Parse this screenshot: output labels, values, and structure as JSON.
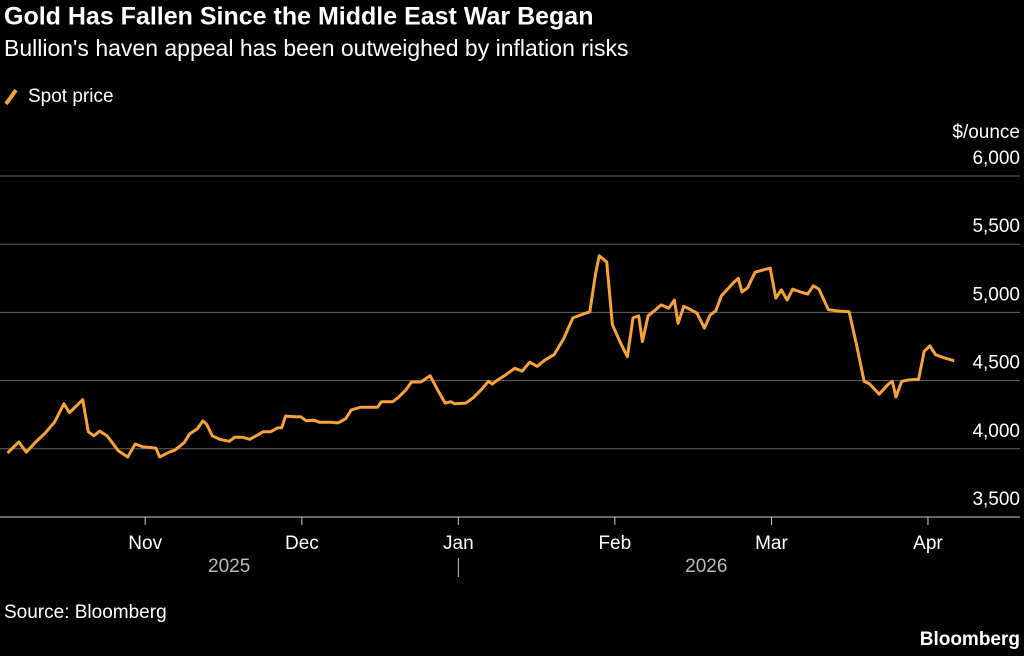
{
  "chart_data": {
    "type": "line",
    "title": "Gold Has Fallen Since the Middle East War Began",
    "subtitle": "Bullion's haven appeal has been outweighed by inflation risks",
    "y_unit": "$/ounce",
    "source": "Source: Bloomberg",
    "brand": "Bloomberg",
    "year_labels": [
      "2025",
      "2026"
    ],
    "xlim": [
      2025.756,
      2026.299
    ],
    "xticks": [
      {
        "value": 2025.8333,
        "label": "Nov"
      },
      {
        "value": 2025.9167,
        "label": "Dec"
      },
      {
        "value": 2026,
        "label": "Jan"
      },
      {
        "value": 2026.0833,
        "label": "Feb"
      },
      {
        "value": 2026.1667,
        "label": "Mar"
      },
      {
        "value": 2026.25,
        "label": "Apr"
      }
    ],
    "ylim": [
      3500,
      6000
    ],
    "yticks": [
      {
        "value": 3500,
        "label": "3,500"
      },
      {
        "value": 4000,
        "label": "4,000"
      },
      {
        "value": 4500,
        "label": "4,500"
      },
      {
        "value": 5000,
        "label": "5,000"
      },
      {
        "value": 5500,
        "label": "5,500"
      },
      {
        "value": 6000,
        "label": "6,000"
      }
    ],
    "grid": true,
    "x": [
      2025.76,
      2025.766,
      2025.77,
      2025.775,
      2025.78,
      2025.785,
      2025.79,
      2025.793,
      2025.8,
      2025.803,
      2025.806,
      2025.809,
      2025.813,
      2025.819,
      2025.824,
      2025.828,
      2025.832,
      2025.839,
      2025.841,
      2025.846,
      2025.849,
      2025.854,
      2025.857,
      2025.861,
      2025.864,
      2025.866,
      2025.869,
      2025.873,
      2025.878,
      2025.881,
      2025.885,
      2025.889,
      2025.893,
      2025.896,
      2025.9,
      2025.904,
      2025.906,
      2025.908,
      2025.913,
      2025.916,
      2025.919,
      2025.923,
      2025.926,
      2025.932,
      2025.936,
      2025.94,
      2025.943,
      2025.948,
      2025.953,
      2025.957,
      2025.959,
      2025.965,
      2025.968,
      2025.972,
      2025.975,
      2025.98,
      2025.985,
      2025.989,
      2025.993,
      2025.996,
      2025.998,
      2026.004,
      2026.008,
      2026.012,
      2026.016,
      2026.018,
      2026.021,
      2026.025,
      2026.03,
      2026.034,
      2026.038,
      2026.042,
      2026.046,
      2026.051,
      2026.056,
      2026.061,
      2026.065,
      2026.07,
      2026.073,
      2026.075,
      2026.079,
      2026.082,
      2026.086,
      2026.09,
      2026.093,
      2026.096,
      2026.098,
      2026.101,
      2026.105,
      2026.108,
      2026.112,
      2026.115,
      2026.117,
      2026.12,
      2026.123,
      2026.127,
      2026.131,
      2026.134,
      2026.137,
      2026.14,
      2026.144,
      2026.147,
      2026.149,
      2026.151,
      2026.154,
      2026.158,
      2026.162,
      2026.166,
      2026.169,
      2026.172,
      2026.175,
      2026.178,
      2026.182,
      2026.186,
      2026.189,
      2026.192,
      2026.197,
      2026.202,
      2026.208,
      2026.212,
      2026.216,
      2026.219,
      2026.224,
      2026.229,
      2026.231,
      2026.233,
      2026.236,
      2026.24,
      2026.245,
      2026.248,
      2026.251,
      2026.254,
      2026.259,
      2026.264
    ],
    "series": [
      {
        "name": "Spot price",
        "color": "#f7a23b",
        "values": [
          3970,
          4050,
          3975,
          4050,
          4115,
          4195,
          4330,
          4265,
          4360,
          4125,
          4095,
          4130,
          4095,
          3985,
          3940,
          4035,
          4015,
          4005,
          3940,
          3975,
          3990,
          4045,
          4110,
          4145,
          4205,
          4180,
          4095,
          4070,
          4055,
          4085,
          4085,
          4070,
          4100,
          4125,
          4125,
          4155,
          4155,
          4240,
          4235,
          4235,
          4205,
          4210,
          4195,
          4195,
          4190,
          4220,
          4285,
          4305,
          4305,
          4305,
          4345,
          4345,
          4375,
          4430,
          4490,
          4490,
          4535,
          4430,
          4335,
          4345,
          4330,
          4335,
          4375,
          4430,
          4495,
          4475,
          4505,
          4540,
          4590,
          4570,
          4635,
          4605,
          4650,
          4690,
          4805,
          4960,
          4980,
          5005,
          5280,
          5415,
          5370,
          4910,
          4785,
          4675,
          4960,
          4975,
          4785,
          4975,
          5020,
          5055,
          5030,
          5090,
          4920,
          5045,
          5025,
          4995,
          4885,
          4980,
          5010,
          5120,
          5180,
          5225,
          5250,
          5150,
          5180,
          5295,
          5310,
          5325,
          5105,
          5165,
          5090,
          5170,
          5150,
          5135,
          5195,
          5170,
          5020,
          5010,
          5005,
          4760,
          4495,
          4475,
          4400,
          4475,
          4495,
          4380,
          4495,
          4505,
          4510,
          4715,
          4755,
          4690,
          4665,
          4645
        ]
      }
    ]
  }
}
